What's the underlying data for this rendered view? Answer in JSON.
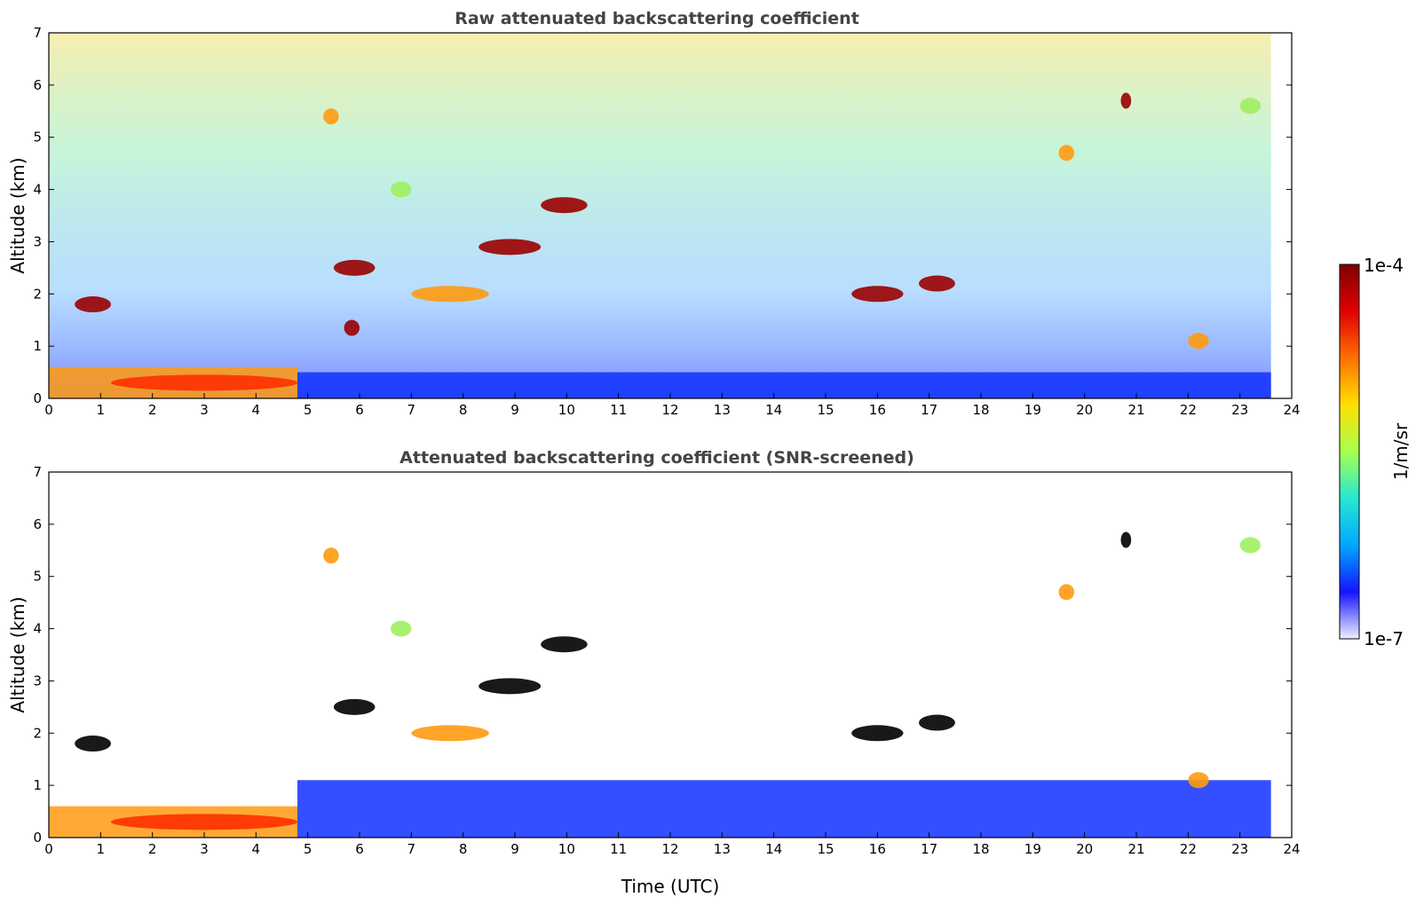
{
  "chart_data": [
    {
      "type": "heatmap",
      "id": "raw",
      "title": "Raw attenuated backscattering coefficient",
      "xlabel": "",
      "ylabel": "Altitude (km)",
      "xlim": [
        0,
        24
      ],
      "ylim": [
        0,
        7
      ],
      "xticks": [
        "0",
        "1",
        "2",
        "3",
        "4",
        "5",
        "6",
        "7",
        "8",
        "9",
        "10",
        "11",
        "12",
        "13",
        "14",
        "15",
        "16",
        "17",
        "18",
        "19",
        "20",
        "21",
        "22",
        "23",
        "24"
      ],
      "yticks": [
        "0",
        "1",
        "2",
        "3",
        "4",
        "5",
        "6",
        "7"
      ],
      "data_end_time": 23.6,
      "boundary_layer": [
        {
          "t0": 0.0,
          "t1": 4.8,
          "top_km": 0.6,
          "level": "high"
        },
        {
          "t0": 4.8,
          "t1": 23.6,
          "top_km": 0.5,
          "level": "low"
        }
      ],
      "cloud_layers": [
        {
          "t0": 0.5,
          "t1": 1.2,
          "alt_km": 1.8,
          "level": "max"
        },
        {
          "t0": 1.2,
          "t1": 4.8,
          "alt_km": 0.3,
          "level": "very-high"
        },
        {
          "t0": 5.3,
          "t1": 5.6,
          "alt_km": 5.4,
          "level": "high"
        },
        {
          "t0": 5.5,
          "t1": 6.3,
          "alt_km": 2.5,
          "level": "max"
        },
        {
          "t0": 5.7,
          "t1": 6.0,
          "alt_km": 1.35,
          "level": "max"
        },
        {
          "t0": 6.6,
          "t1": 7.0,
          "alt_km": 4.0,
          "level": "medium"
        },
        {
          "t0": 7.0,
          "t1": 8.5,
          "alt_km": 2.0,
          "level": "high"
        },
        {
          "t0": 8.3,
          "t1": 9.5,
          "alt_km": 2.9,
          "level": "max"
        },
        {
          "t0": 9.5,
          "t1": 10.4,
          "alt_km": 3.7,
          "level": "max"
        },
        {
          "t0": 15.5,
          "t1": 16.5,
          "alt_km": 2.0,
          "level": "max"
        },
        {
          "t0": 16.8,
          "t1": 17.5,
          "alt_km": 2.2,
          "level": "max"
        },
        {
          "t0": 19.5,
          "t1": 19.8,
          "alt_km": 4.7,
          "level": "high"
        },
        {
          "t0": 20.7,
          "t1": 20.9,
          "alt_km": 5.7,
          "level": "max"
        },
        {
          "t0": 22.0,
          "t1": 22.4,
          "alt_km": 1.1,
          "level": "high"
        },
        {
          "t0": 23.0,
          "t1": 23.4,
          "alt_km": 5.6,
          "level": "medium"
        }
      ]
    },
    {
      "type": "heatmap",
      "id": "screened",
      "title": "Attenuated backscattering coefficient (SNR-screened)",
      "xlabel": "Time (UTC)",
      "ylabel": "Altitude (km)",
      "xlim": [
        0,
        24
      ],
      "ylim": [
        0,
        7
      ],
      "xticks": [
        "0",
        "1",
        "2",
        "3",
        "4",
        "5",
        "6",
        "7",
        "8",
        "9",
        "10",
        "11",
        "12",
        "13",
        "14",
        "15",
        "16",
        "17",
        "18",
        "19",
        "20",
        "21",
        "22",
        "23",
        "24"
      ],
      "yticks": [
        "0",
        "1",
        "2",
        "3",
        "4",
        "5",
        "6",
        "7"
      ],
      "data_end_time": 23.6,
      "boundary_layer": [
        {
          "t0": 0.0,
          "t1": 4.8,
          "top_km": 0.6,
          "level": "high"
        },
        {
          "t0": 4.8,
          "t1": 23.6,
          "top_km": 1.1,
          "level": "low"
        }
      ],
      "cloud_layers": [
        {
          "t0": 0.5,
          "t1": 1.2,
          "alt_km": 1.8,
          "level": "saturated"
        },
        {
          "t0": 1.2,
          "t1": 4.8,
          "alt_km": 0.3,
          "level": "very-high"
        },
        {
          "t0": 5.3,
          "t1": 5.6,
          "alt_km": 5.4,
          "level": "high"
        },
        {
          "t0": 5.5,
          "t1": 6.3,
          "alt_km": 2.5,
          "level": "saturated"
        },
        {
          "t0": 6.6,
          "t1": 7.0,
          "alt_km": 4.0,
          "level": "medium"
        },
        {
          "t0": 7.0,
          "t1": 8.5,
          "alt_km": 2.0,
          "level": "high"
        },
        {
          "t0": 8.3,
          "t1": 9.5,
          "alt_km": 2.9,
          "level": "saturated"
        },
        {
          "t0": 9.5,
          "t1": 10.4,
          "alt_km": 3.7,
          "level": "saturated"
        },
        {
          "t0": 15.5,
          "t1": 16.5,
          "alt_km": 2.0,
          "level": "saturated"
        },
        {
          "t0": 16.8,
          "t1": 17.5,
          "alt_km": 2.2,
          "level": "saturated"
        },
        {
          "t0": 19.5,
          "t1": 19.8,
          "alt_km": 4.7,
          "level": "high"
        },
        {
          "t0": 20.7,
          "t1": 20.9,
          "alt_km": 5.7,
          "level": "saturated"
        },
        {
          "t0": 22.0,
          "t1": 22.4,
          "alt_km": 1.1,
          "level": "high"
        },
        {
          "t0": 23.0,
          "t1": 23.4,
          "alt_km": 5.6,
          "level": "medium"
        }
      ]
    }
  ],
  "colorbar": {
    "label": "1/m/sr",
    "max_label": "1e-4",
    "min_label": "1e-7",
    "range": [
      1e-07,
      0.0001
    ],
    "scale": "log",
    "colors": [
      "#f0f0ff",
      "#1414ff",
      "#00a8ff",
      "#26e8d0",
      "#a8ff50",
      "#ffe000",
      "#ff7000",
      "#e00000",
      "#7f0000"
    ]
  },
  "level_colors": {
    "low": "#1030ff",
    "medium": "#9ef060",
    "high": "#ff9a10",
    "very-high": "#ff3000",
    "max": "#9a0000",
    "saturated": "#000000"
  }
}
